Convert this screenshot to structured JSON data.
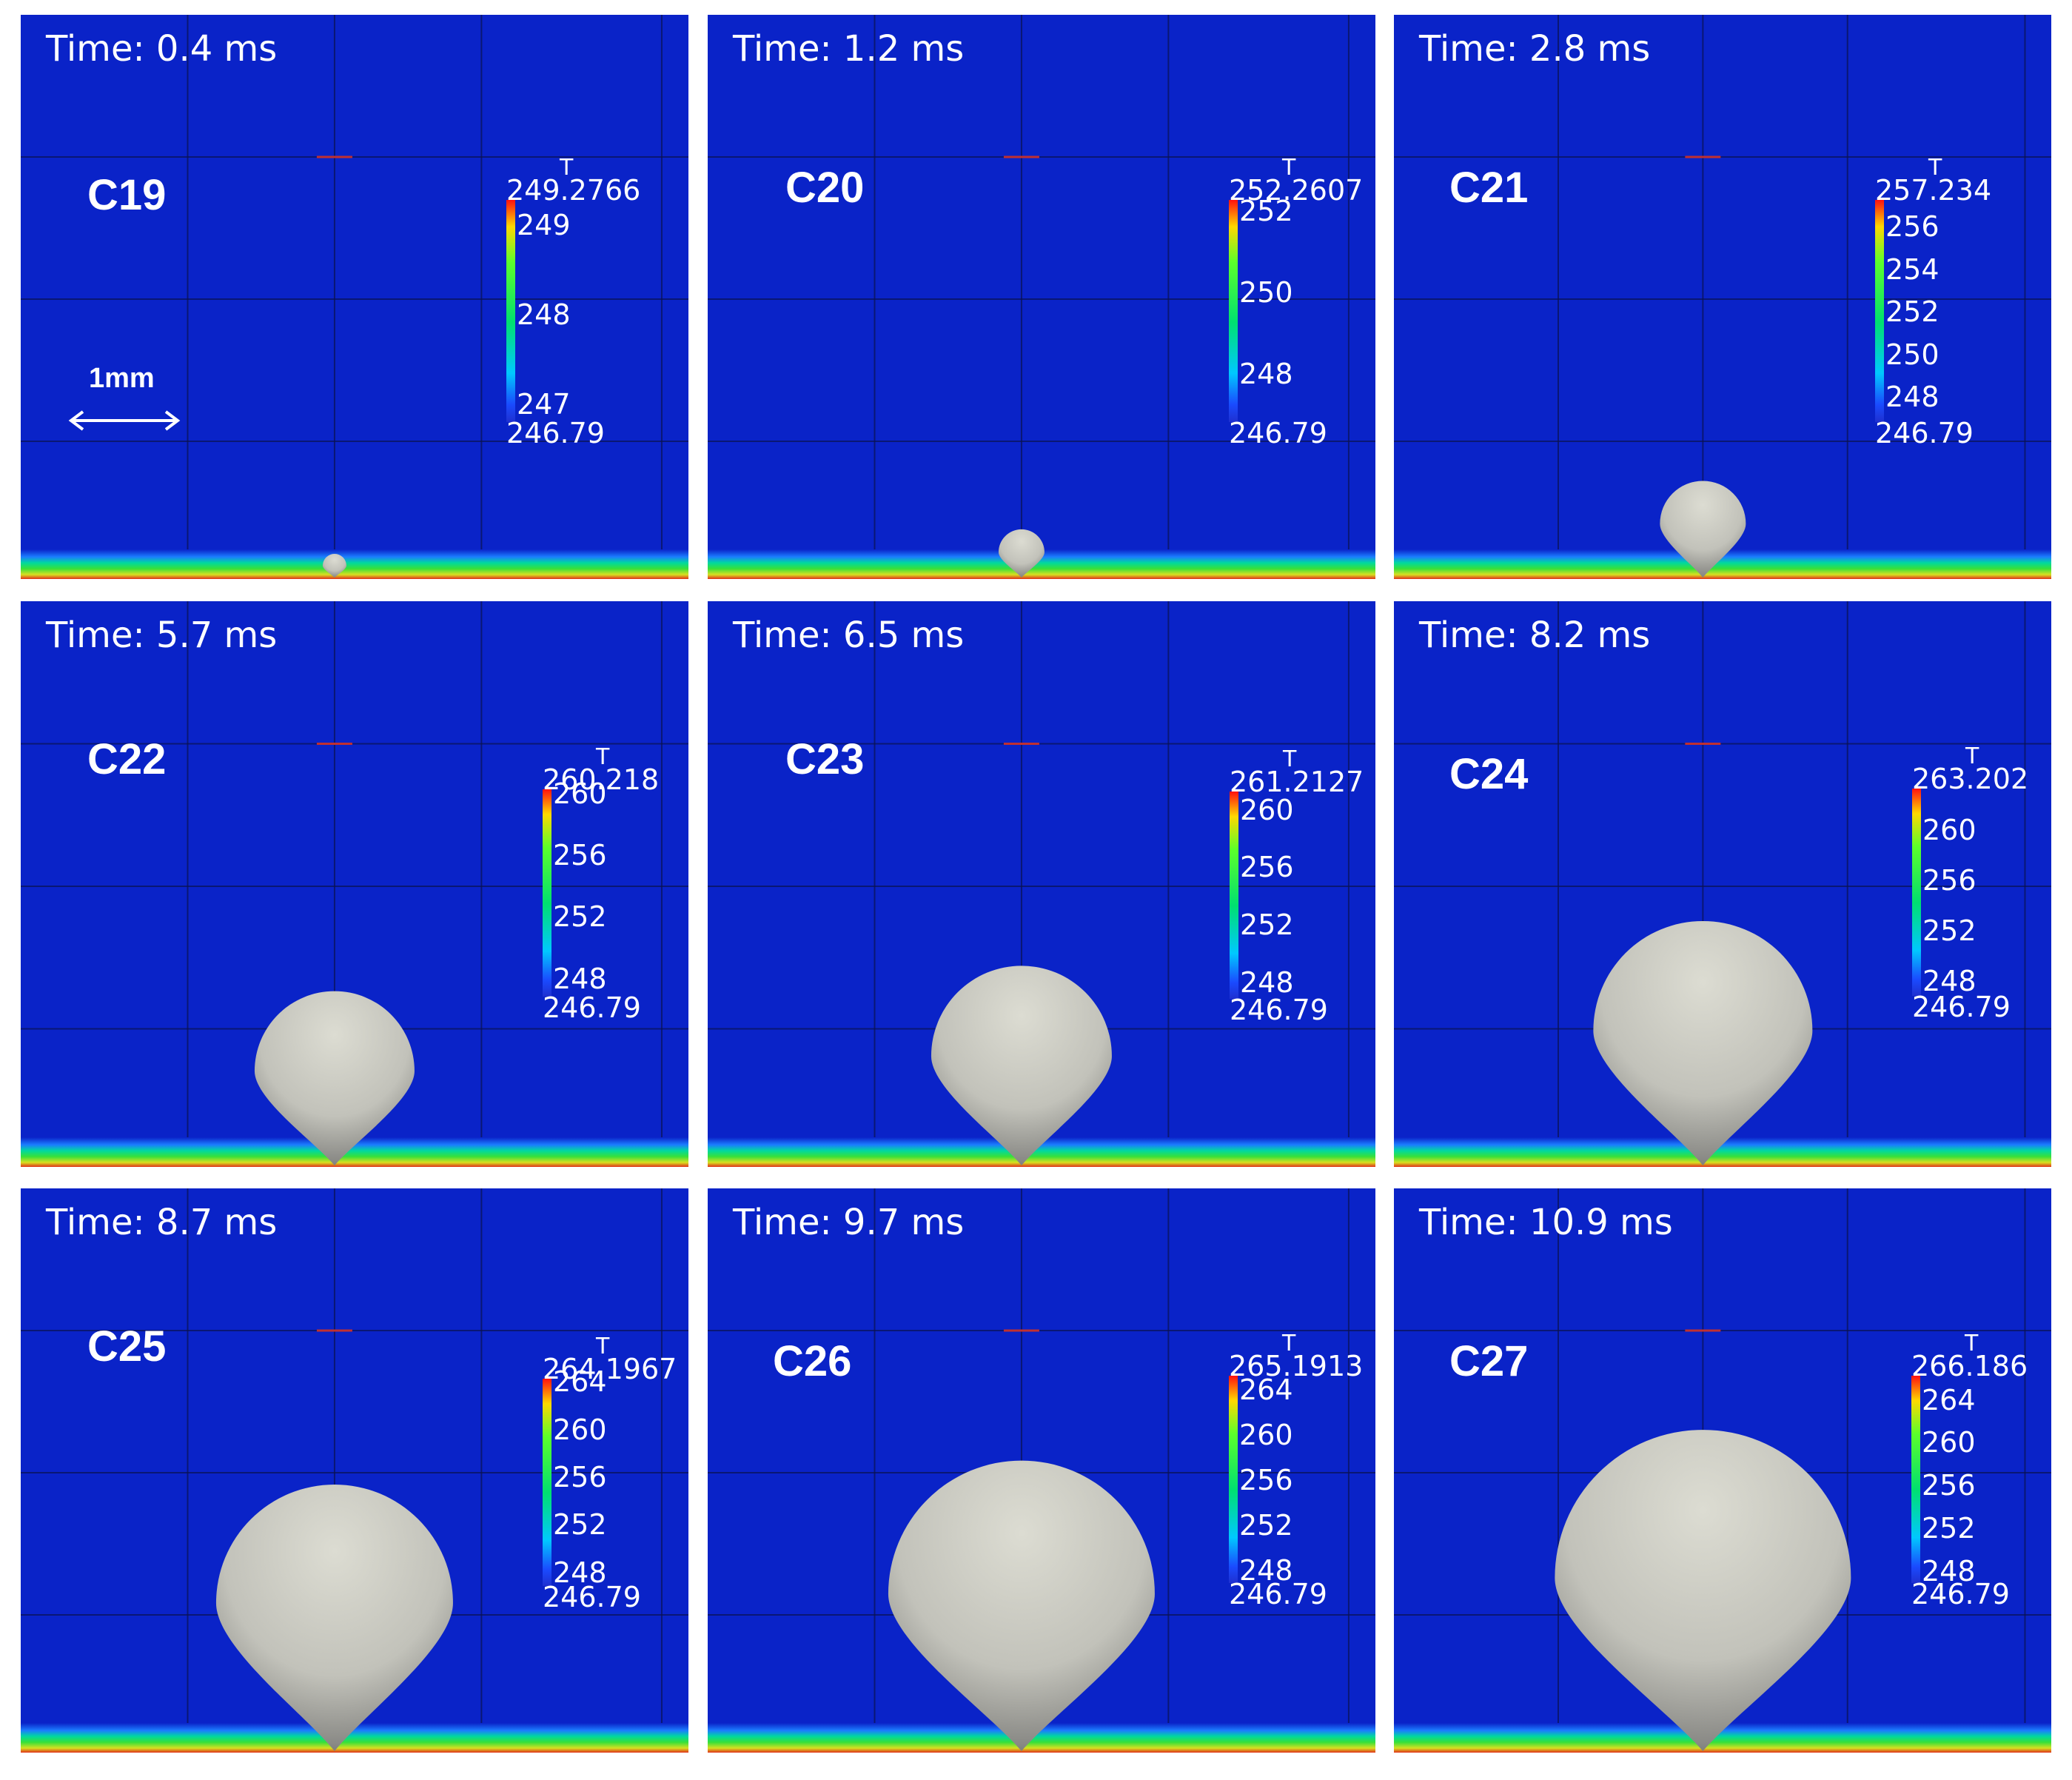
{
  "colors": {
    "background": "#0a23c8",
    "bubble_light": "#dcdcd2",
    "bubble_dark": "#5a5a58",
    "colorbar_top": "#ff1010",
    "colorbar_bottom": "#1f30d0"
  },
  "colorbar_title": "T",
  "colorbar_min_label": "246.79",
  "scale_bar": {
    "label": "1mm",
    "icon": "double-arrow-icon"
  },
  "panels": [
    {
      "case": "C19",
      "time": "Time: 0.4 ms",
      "max_label": "249.2766",
      "ticks": [
        "249",
        "248",
        "247"
      ],
      "t_max": 249.2766,
      "tick_values": [
        249,
        248,
        247
      ]
    },
    {
      "case": "C20",
      "time": "Time: 1.2 ms",
      "max_label": "252.2607",
      "ticks": [
        "252",
        "250",
        "248"
      ],
      "t_max": 252.2607,
      "tick_values": [
        252,
        250,
        248
      ]
    },
    {
      "case": "C21",
      "time": "Time: 2.8 ms",
      "max_label": "257.234",
      "ticks": [
        "256",
        "254",
        "252",
        "250",
        "248"
      ],
      "t_max": 257.234,
      "tick_values": [
        256,
        254,
        252,
        250,
        248
      ]
    },
    {
      "case": "C22",
      "time": "Time: 5.7 ms",
      "max_label": "260.218",
      "ticks": [
        "260",
        "256",
        "252",
        "248"
      ],
      "t_max": 260.218,
      "tick_values": [
        260,
        256,
        252,
        248
      ]
    },
    {
      "case": "C23",
      "time": "Time: 6.5 ms",
      "max_label": "261.2127",
      "ticks": [
        "260",
        "256",
        "252",
        "248"
      ],
      "t_max": 261.2127,
      "tick_values": [
        260,
        256,
        252,
        248
      ]
    },
    {
      "case": "C24",
      "time": "Time: 8.2 ms",
      "max_label": "263.202",
      "ticks": [
        "260",
        "256",
        "252",
        "248"
      ],
      "t_max": 263.202,
      "tick_values": [
        260,
        256,
        252,
        248
      ]
    },
    {
      "case": "C25",
      "time": "Time: 8.7 ms",
      "max_label": "264.1967",
      "ticks": [
        "264",
        "260",
        "256",
        "252",
        "248"
      ],
      "t_max": 264.1967,
      "tick_values": [
        264,
        260,
        256,
        252,
        248
      ]
    },
    {
      "case": "C26",
      "time": "Time: 9.7 ms",
      "max_label": "265.1913",
      "ticks": [
        "264",
        "260",
        "256",
        "252",
        "248"
      ],
      "t_max": 265.1913,
      "tick_values": [
        264,
        260,
        256,
        252,
        248
      ]
    },
    {
      "case": "C27",
      "time": "Time: 10.9 ms",
      "max_label": "266.186",
      "ticks": [
        "264",
        "260",
        "256",
        "252",
        "248"
      ],
      "t_max": 266.186,
      "tick_values": [
        264,
        260,
        256,
        252,
        248
      ]
    }
  ]
}
